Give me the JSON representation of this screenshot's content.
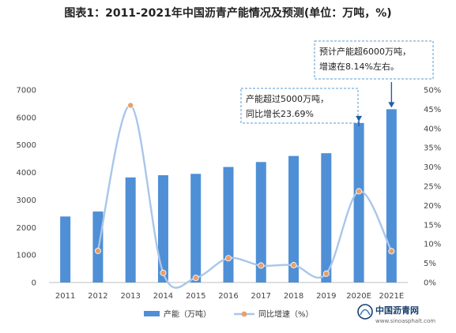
{
  "chart_data": {
    "type": "bar",
    "title": "图表1：2011-2021年中国沥青产能情况及预测(单位：万吨，%)",
    "categories": [
      "2011",
      "2012",
      "2013",
      "2014",
      "2015",
      "2016",
      "2017",
      "2018",
      "2019",
      "2020E",
      "2021E"
    ],
    "series": [
      {
        "name": "产能（万吨）",
        "type": "bar",
        "axis": "left",
        "color": "#4f8fd6",
        "values": [
          2400,
          2580,
          3820,
          3900,
          3950,
          4200,
          4380,
          4600,
          4700,
          5800,
          6300
        ]
      },
      {
        "name": "同比增速（%）",
        "type": "line",
        "axis": "right",
        "color": "#a9c6e8",
        "marker_color": "#e8a06a",
        "values": [
          null,
          8.2,
          46.0,
          2.5,
          1.2,
          6.3,
          4.4,
          4.5,
          2.3,
          23.69,
          8.14
        ]
      }
    ],
    "ylim_left": [
      0,
      7000
    ],
    "yticks_left": [
      0,
      1000,
      2000,
      3000,
      4000,
      5000,
      6000,
      7000
    ],
    "ylim_right": [
      0,
      50
    ],
    "yticks_right": [
      "0%",
      "5%",
      "10%",
      "15%",
      "20%",
      "25%",
      "30%",
      "35%",
      "40%",
      "45%",
      "50%"
    ],
    "legend_position": "bottom",
    "annotations": [
      {
        "target": "2020E",
        "lines": [
          "产能超过5000万吨，",
          "同比增长23.69%"
        ]
      },
      {
        "target": "2021E",
        "lines": [
          "预计产能超6000万吨，",
          "增速在8.14%左右。"
        ]
      }
    ],
    "grid": false
  },
  "watermark": {
    "text": "中国沥青网",
    "url": "www.sinoasphalt.com"
  }
}
